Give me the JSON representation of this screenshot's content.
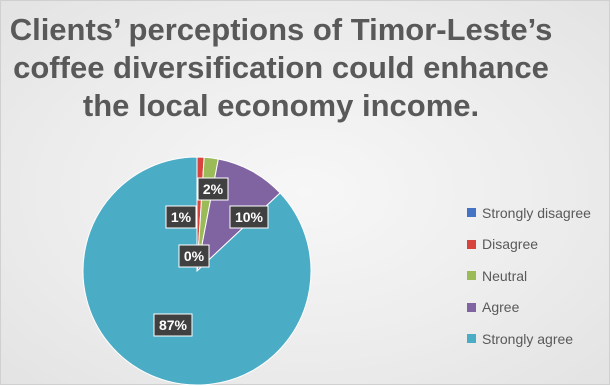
{
  "chart_data": {
    "type": "pie",
    "title_lines": [
      "Clients’ perceptions of Timor-Leste’s",
      "coffee diversification could enhance",
      "the local economy income."
    ],
    "slices": [
      {
        "name": "Strongly disagree",
        "value": 0,
        "label": "0%",
        "color": "#4472c4"
      },
      {
        "name": "Disagree",
        "value": 1,
        "label": "1%",
        "color": "#d9433d"
      },
      {
        "name": "Neutral",
        "value": 2,
        "label": "2%",
        "color": "#9bbb59"
      },
      {
        "name": "Agree",
        "value": 10,
        "label": "10%",
        "color": "#8064a2"
      },
      {
        "name": "Strongly agree",
        "value": 87,
        "label": "87%",
        "color": "#4bacc6"
      }
    ],
    "legend_position": "right"
  }
}
